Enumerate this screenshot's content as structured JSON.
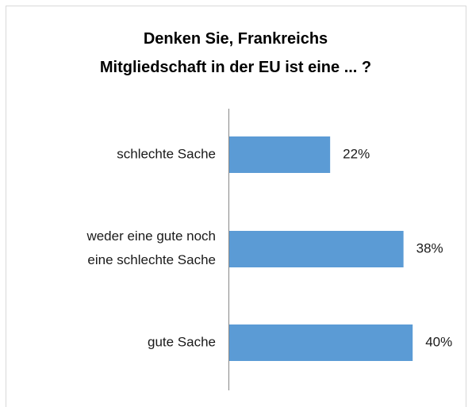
{
  "chart_data": {
    "type": "bar",
    "orientation": "horizontal",
    "title": "Denken Sie, Frankreichs\nMitgliedschaft in der EU ist eine ... ?",
    "categories": [
      "schlechte Sache",
      "weder eine gute noch\neine schlechte Sache",
      "gute Sache"
    ],
    "values": [
      22,
      38,
      40
    ],
    "value_labels": [
      "22%",
      "38%",
      "40%"
    ],
    "color": "#5b9bd5"
  }
}
